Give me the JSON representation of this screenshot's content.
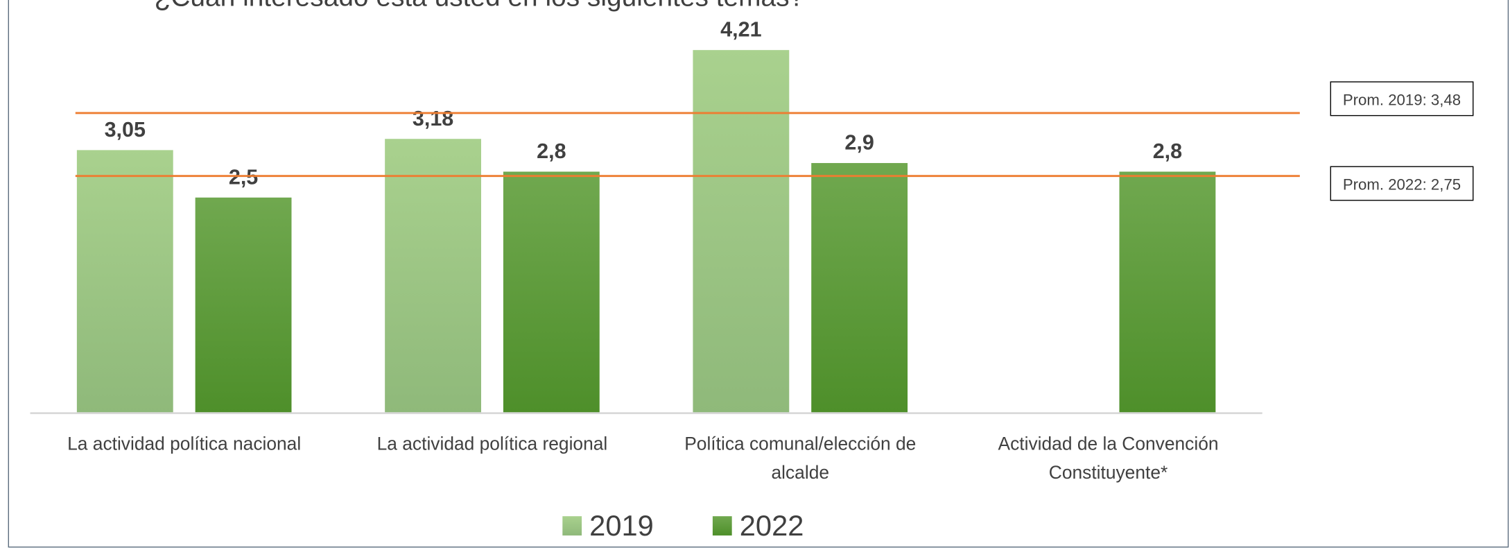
{
  "chart_data": {
    "type": "bar",
    "title": "¿Cuán interesado está usted en los siguientes temas?",
    "categories": [
      "La actividad política nacional",
      "La actividad política regional",
      "Política comunal/elección de alcalde",
      "Actividad de la Convención Constituyente*"
    ],
    "series": [
      {
        "name": "2019",
        "color": "#a9d18e",
        "values": [
          3.05,
          3.18,
          4.21,
          null
        ],
        "value_labels": [
          "3,05",
          "3,18",
          "4,21",
          null
        ]
      },
      {
        "name": "2022",
        "color": "#5b9b3a",
        "values": [
          2.5,
          2.8,
          2.9,
          2.8
        ],
        "value_labels": [
          "2,5",
          "2,8",
          "2,9",
          "2,8"
        ]
      }
    ],
    "averages": [
      {
        "label": "Prom. 2019: 3,48",
        "value": 3.48,
        "color": "#ed7d31"
      },
      {
        "label": "Prom. 2022: 2,75",
        "value": 2.75,
        "color": "#ed7d31"
      }
    ],
    "ylim": [
      0,
      4.5
    ],
    "legend": "bottom"
  }
}
